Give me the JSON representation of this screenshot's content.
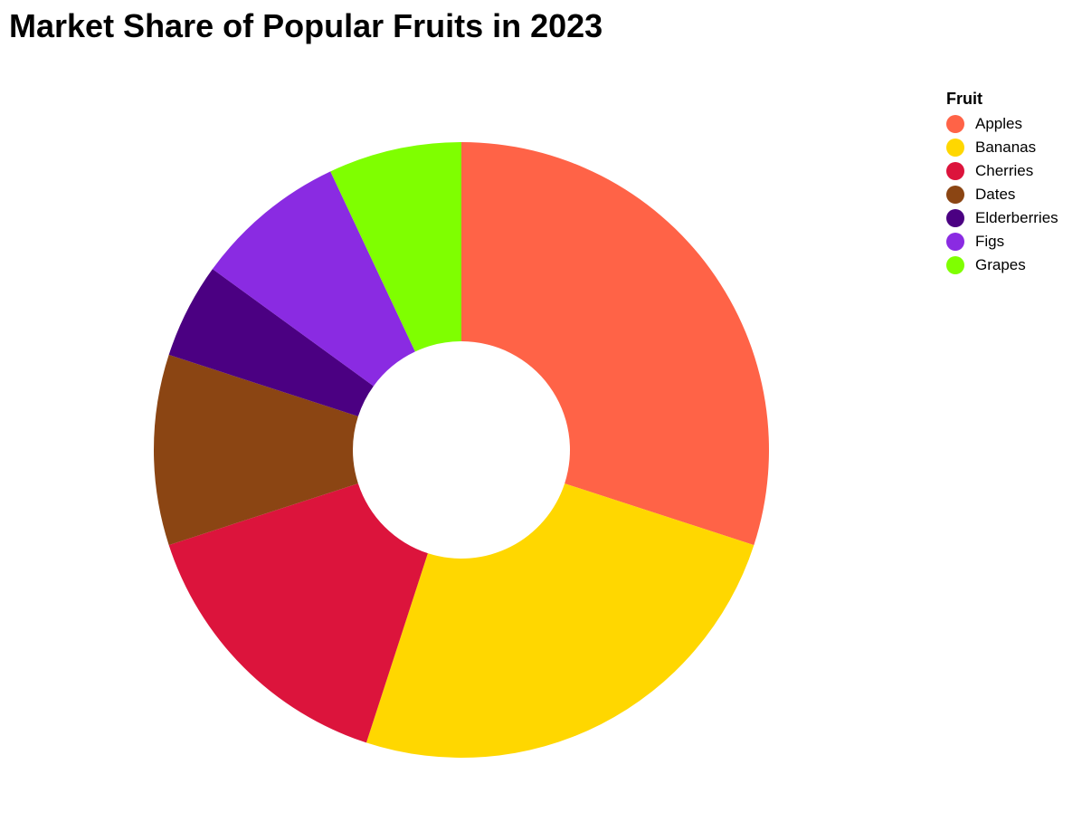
{
  "chart_data": {
    "type": "pie",
    "title": "Market Share of Popular Fruits in 2023",
    "donut": true,
    "legend": {
      "title": "Fruit",
      "placement": "right"
    },
    "categories": [
      "Apples",
      "Bananas",
      "Cherries",
      "Dates",
      "Elderberries",
      "Figs",
      "Grapes"
    ],
    "values": [
      30,
      25,
      15,
      10,
      5,
      8,
      7
    ],
    "colors": [
      "#FF6347",
      "#FFD700",
      "#DC143C",
      "#8B4513",
      "#4B0082",
      "#8A2BE2",
      "#7FFF00"
    ]
  }
}
